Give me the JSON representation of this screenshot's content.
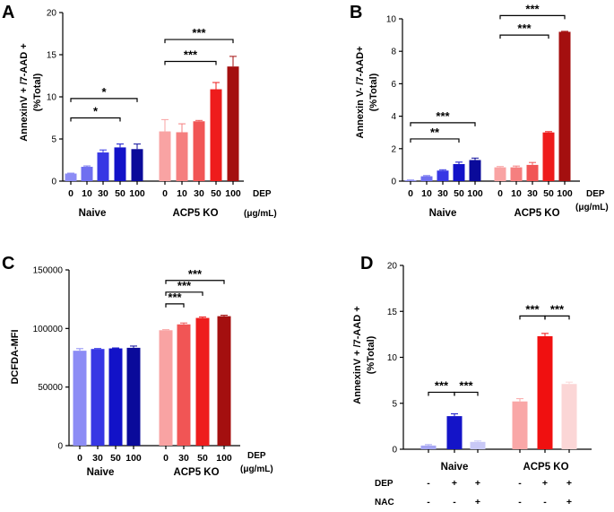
{
  "chart_data": [
    {
      "panel": "A",
      "type": "bar",
      "ylabel": [
        "AnnexinV + /7-AAD +",
        "(%Total)"
      ],
      "ylim": [
        0,
        20
      ],
      "yticks": [
        0,
        5,
        10,
        15,
        20
      ],
      "groups": [
        {
          "name": "Naive",
          "categories": [
            "0",
            "10",
            "30",
            "50",
            "100"
          ],
          "values": [
            0.9,
            1.7,
            3.4,
            4.0,
            3.8
          ],
          "errors": [
            0.05,
            0.1,
            0.3,
            0.4,
            0.6
          ],
          "colors": [
            "#8c8cf5",
            "#6f6ff0",
            "#3737e4",
            "#1212c8",
            "#0a0a9a"
          ]
        },
        {
          "name": "ACP5 KO",
          "categories": [
            "0",
            "10",
            "30",
            "50",
            "100"
          ],
          "values": [
            5.9,
            5.8,
            7.1,
            10.9,
            13.6
          ],
          "errors": [
            1.4,
            1.0,
            0.1,
            0.8,
            1.2
          ],
          "colors": [
            "#f9a3a3",
            "#f57f7f",
            "#f15555",
            "#ee1c1c",
            "#a40f0f"
          ]
        }
      ],
      "dep_label": "DEP",
      "unit_label": "(μg/mL)",
      "comparisons": [
        {
          "label": "*",
          "from": [
            "Naive",
            0
          ],
          "to": [
            "Naive",
            3
          ],
          "y": 7.5
        },
        {
          "label": "*",
          "from": [
            "Naive",
            0
          ],
          "to": [
            "Naive",
            4
          ],
          "y": 9.8
        },
        {
          "label": "***",
          "from": [
            "ACP5 KO",
            0
          ],
          "to": [
            "ACP5 KO",
            3
          ],
          "y": 14.2
        },
        {
          "label": "***",
          "from": [
            "ACP5 KO",
            0
          ],
          "to": [
            "ACP5 KO",
            4
          ],
          "y": 16.8
        }
      ]
    },
    {
      "panel": "B",
      "type": "bar",
      "ylabel": [
        "Annexin V- /7-AAD+",
        "(%Total)"
      ],
      "ylim": [
        0,
        10
      ],
      "yticks": [
        0,
        2,
        4,
        6,
        8,
        10
      ],
      "groups": [
        {
          "name": "Naive",
          "categories": [
            "0",
            "10",
            "30",
            "50",
            "100"
          ],
          "values": [
            0.05,
            0.3,
            0.65,
            1.05,
            1.3
          ],
          "errors": [
            0.02,
            0.04,
            0.05,
            0.12,
            0.12
          ],
          "colors": [
            "#8c8cf5",
            "#6f6ff0",
            "#3737e4",
            "#1212c8",
            "#0a0a9a"
          ]
        },
        {
          "name": "ACP5 KO",
          "categories": [
            "0",
            "10",
            "30",
            "50",
            "100"
          ],
          "values": [
            0.85,
            0.85,
            1.0,
            3.0,
            9.2
          ],
          "errors": [
            0.05,
            0.08,
            0.15,
            0.05,
            0.03
          ],
          "colors": [
            "#f9a3a3",
            "#f57f7f",
            "#f15555",
            "#ee1c1c",
            "#a40f0f"
          ]
        }
      ],
      "dep_label": "DEP",
      "unit_label": "(μg/mL)",
      "comparisons": [
        {
          "label": "**",
          "from": [
            "Naive",
            0
          ],
          "to": [
            "Naive",
            3
          ],
          "y": 2.6
        },
        {
          "label": "***",
          "from": [
            "Naive",
            0
          ],
          "to": [
            "Naive",
            4
          ],
          "y": 3.6
        },
        {
          "label": "***",
          "from": [
            "ACP5 KO",
            0
          ],
          "to": [
            "ACP5 KO",
            3
          ],
          "y": 9.0
        },
        {
          "label": "***",
          "from": [
            "ACP5 KO",
            0
          ],
          "to": [
            "ACP5 KO",
            4
          ],
          "y": 10.2
        }
      ]
    },
    {
      "panel": "C",
      "type": "bar",
      "ylabel": [
        "DCFDA-MFI"
      ],
      "ylim": [
        0,
        150000
      ],
      "yticks": [
        0,
        50000,
        100000,
        150000
      ],
      "groups": [
        {
          "name": "Naive",
          "categories": [
            "0",
            "30",
            "50",
            "100"
          ],
          "values": [
            81000,
            82500,
            83000,
            83500
          ],
          "errors": [
            1800,
            400,
            400,
            1500
          ],
          "colors": [
            "#8c8cf5",
            "#3737e4",
            "#1212c8",
            "#0a0a9a"
          ]
        },
        {
          "name": "ACP5 KO",
          "categories": [
            "0",
            "30",
            "50",
            "100"
          ],
          "values": [
            98500,
            103500,
            109000,
            110500
          ],
          "errors": [
            500,
            1200,
            800,
            800
          ],
          "colors": [
            "#f9a3a3",
            "#f15555",
            "#ee1c1c",
            "#a40f0f"
          ]
        }
      ],
      "dep_label": "DEP",
      "unit_label": "(μg/mL)",
      "comparisons": [
        {
          "label": "***",
          "from": [
            "ACP5 KO",
            0
          ],
          "to": [
            "ACP5 KO",
            1
          ],
          "y": 121000
        },
        {
          "label": "***",
          "from": [
            "ACP5 KO",
            0
          ],
          "to": [
            "ACP5 KO",
            2
          ],
          "y": 131000
        },
        {
          "label": "***",
          "from": [
            "ACP5 KO",
            0
          ],
          "to": [
            "ACP5 KO",
            3
          ],
          "y": 141000
        }
      ]
    },
    {
      "panel": "D",
      "type": "bar",
      "ylabel": [
        "AnnexinV + /7-AAD +",
        "(%Total)"
      ],
      "ylim": [
        0,
        20
      ],
      "yticks": [
        0,
        5,
        10,
        15,
        20
      ],
      "groups": [
        {
          "name": "Naive",
          "values": [
            0.4,
            3.6,
            0.8
          ],
          "errors": [
            0.1,
            0.25,
            0.1
          ],
          "colors": [
            "#a5a5f2",
            "#1414c8",
            "#c8c8f6"
          ]
        },
        {
          "name": "ACP5 KO",
          "values": [
            5.2,
            12.3,
            7.1
          ],
          "errors": [
            0.3,
            0.3,
            0.2
          ],
          "colors": [
            "#f9a7a7",
            "#f01010",
            "#fbd6d6"
          ]
        }
      ],
      "treatments": [
        {
          "label": "DEP",
          "signs": [
            "-",
            "+",
            "+",
            "-",
            "+",
            "+"
          ]
        },
        {
          "label": "NAC",
          "signs": [
            "-",
            "-",
            "+",
            "-",
            "-",
            "+"
          ]
        }
      ],
      "comparisons": [
        {
          "label": "***",
          "from": [
            "Naive",
            0
          ],
          "to": [
            "Naive",
            1
          ],
          "y": 6.2
        },
        {
          "label": "***",
          "from": [
            "Naive",
            1
          ],
          "to": [
            "Naive",
            2
          ],
          "y": 6.2
        },
        {
          "label": "***",
          "from": [
            "ACP5 KO",
            0
          ],
          "to": [
            "ACP5 KO",
            1
          ],
          "y": 14.5
        },
        {
          "label": "***",
          "from": [
            "ACP5 KO",
            1
          ],
          "to": [
            "ACP5 KO",
            2
          ],
          "y": 14.5
        }
      ]
    }
  ]
}
